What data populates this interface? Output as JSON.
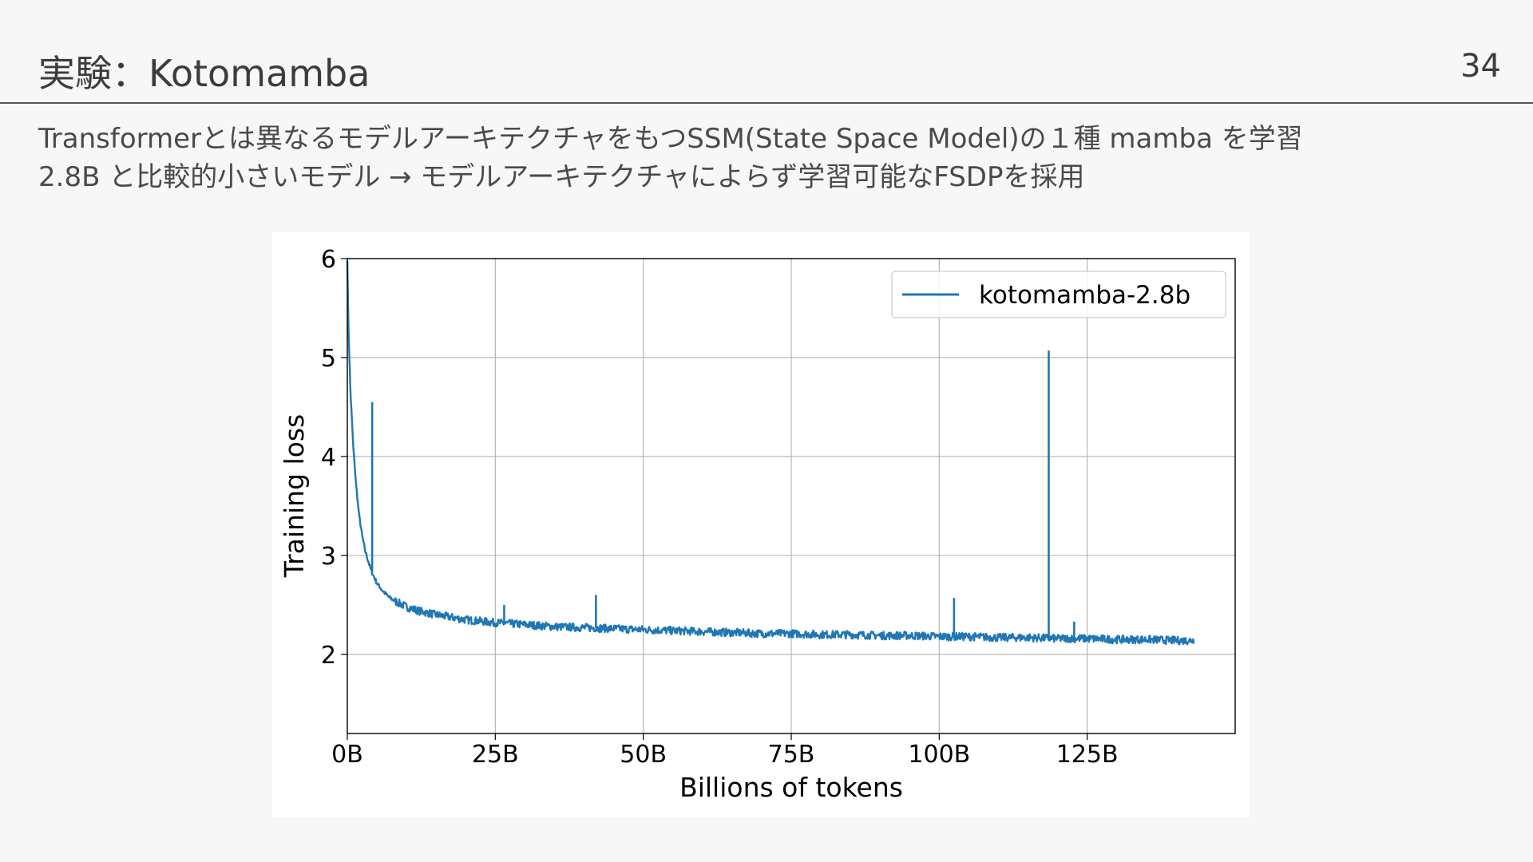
{
  "slide": {
    "title": "実験：Kotomamba",
    "page_number": "34",
    "bullets": [
      "Transformerとは異なるモデルアーキテクチャをもつSSM(State Space Model)の１種 mamba を学習",
      "2.8B と比較的小さいモデル → モデルアーキテクチャによらず学習可能なFSDPを採用"
    ]
  },
  "colors": {
    "series": "#1f77b4",
    "grid": "#b0b0b0",
    "background": "#f7f7f7"
  },
  "chart_data": {
    "type": "line",
    "title": "",
    "xlabel": "Billions of tokens",
    "ylabel": "Training loss",
    "xlim": [
      0,
      150
    ],
    "ylim": [
      1.2,
      6.0
    ],
    "x_ticks": [
      0,
      25,
      50,
      75,
      100,
      125
    ],
    "x_tick_labels": [
      "0B",
      "25B",
      "50B",
      "75B",
      "100B",
      "125B"
    ],
    "y_ticks": [
      2,
      3,
      4,
      5,
      6
    ],
    "y_tick_labels": [
      "2",
      "3",
      "4",
      "5",
      "6"
    ],
    "grid": true,
    "legend_position": "top-right",
    "series": [
      {
        "name": "kotomamba-2.8b",
        "color": "#1f77b4",
        "x": [
          0,
          0.2,
          0.5,
          1,
          1.5,
          2,
          2.5,
          3,
          3.5,
          4,
          5,
          6,
          7,
          8,
          10,
          12,
          15,
          20,
          25,
          30,
          35,
          40,
          45,
          50,
          55,
          60,
          65,
          70,
          75,
          80,
          85,
          90,
          95,
          100,
          105,
          110,
          115,
          120,
          125,
          130,
          135,
          140,
          143
        ],
        "y": [
          6.0,
          5.3,
          4.7,
          4.1,
          3.7,
          3.4,
          3.2,
          3.05,
          2.95,
          2.85,
          2.72,
          2.64,
          2.58,
          2.54,
          2.48,
          2.44,
          2.4,
          2.35,
          2.32,
          2.3,
          2.28,
          2.27,
          2.26,
          2.25,
          2.24,
          2.23,
          2.22,
          2.21,
          2.21,
          2.2,
          2.2,
          2.19,
          2.19,
          2.18,
          2.18,
          2.17,
          2.17,
          2.16,
          2.16,
          2.15,
          2.15,
          2.14,
          2.14
        ]
      }
    ],
    "spikes": [
      {
        "x": 4.2,
        "y": 4.55
      },
      {
        "x": 26.5,
        "y": 2.5
      },
      {
        "x": 42,
        "y": 2.6
      },
      {
        "x": 102.5,
        "y": 2.57
      },
      {
        "x": 118.5,
        "y": 5.07
      },
      {
        "x": 122.8,
        "y": 2.33
      }
    ]
  }
}
